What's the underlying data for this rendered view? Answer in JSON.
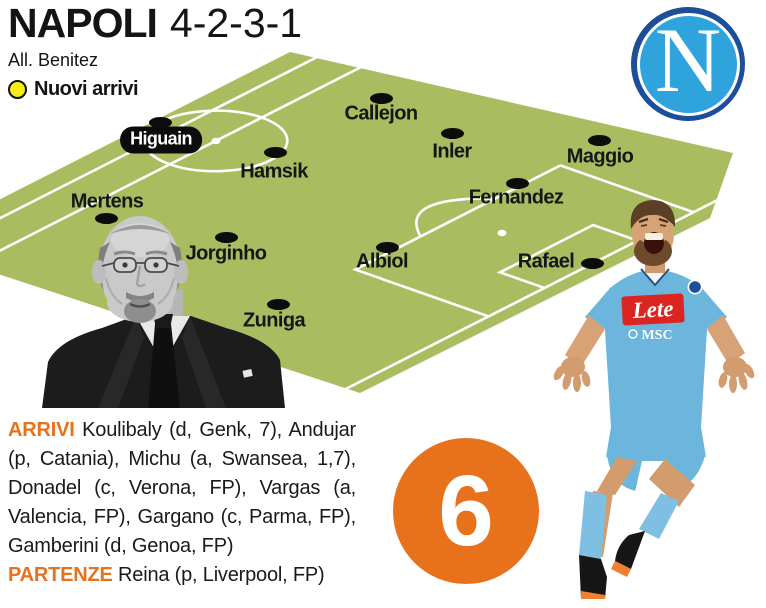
{
  "header": {
    "title": "NAPOLI",
    "formation": "4-2-3-1",
    "coach": "All. Benitez",
    "legend": "Nuovi arrivi"
  },
  "logo": {
    "letter": "N"
  },
  "pitch": {
    "players": [
      {
        "name": "Higuain",
        "highlight": true,
        "dot": [
          160,
          122
        ],
        "label": [
          161,
          140
        ]
      },
      {
        "name": "Hamsik",
        "dot": [
          275,
          152
        ],
        "label": [
          274,
          172
        ]
      },
      {
        "name": "Callejon",
        "dot": [
          381,
          98
        ],
        "label": [
          381,
          114
        ]
      },
      {
        "name": "Inler",
        "dot": [
          452,
          133
        ],
        "label": [
          452,
          152
        ]
      },
      {
        "name": "Maggio",
        "dot": [
          599,
          140
        ],
        "label": [
          600,
          157
        ]
      },
      {
        "name": "Fernandez",
        "dot": [
          517,
          183
        ],
        "label": [
          516,
          198
        ]
      },
      {
        "name": "Mertens",
        "dot": [
          106,
          218
        ],
        "label": [
          107,
          202
        ]
      },
      {
        "name": "Jorginho",
        "dot": [
          226,
          237
        ],
        "label": [
          226,
          254
        ]
      },
      {
        "name": "Albiol",
        "dot": [
          387,
          247
        ],
        "label": [
          382,
          262
        ]
      },
      {
        "name": "Rafael",
        "dot": [
          592,
          263
        ],
        "label": [
          546,
          262
        ]
      },
      {
        "name": "Zuniga",
        "dot": [
          278,
          304
        ],
        "label": [
          274,
          321
        ]
      }
    ]
  },
  "stat_badge": {
    "value": "6"
  },
  "transfers": {
    "arrivi_label": "ARRIVI",
    "line1_rest": " Koulibaly (d, Genk, 7), Andujar",
    "line2": "(p, Catania), Michu (a, Swansea, 1,7),",
    "line3": "Donadel (c, Verona, FP), Vargas (a,",
    "line4": "Valencia, FP), Gargano (c, Parma, FP),",
    "line5": "Gamberini (d, Genoa, FP)",
    "partenze_label": "PARTENZE",
    "partenze_rest": " Reina (p, Liverpool, FP)"
  },
  "shirt": {
    "sponsor": "Lete",
    "sponsor2": "MSC"
  },
  "colors": {
    "pitch_green": "#a9bc60",
    "accent_orange": "#e8711c",
    "logo_navy": "#1d4e99",
    "logo_blue": "#2fa4dc",
    "legend_yellow": "#f6ec18",
    "text_black": "#141414",
    "kit_blue": "#6cb5dd",
    "sponsor_red": "#da2520"
  }
}
